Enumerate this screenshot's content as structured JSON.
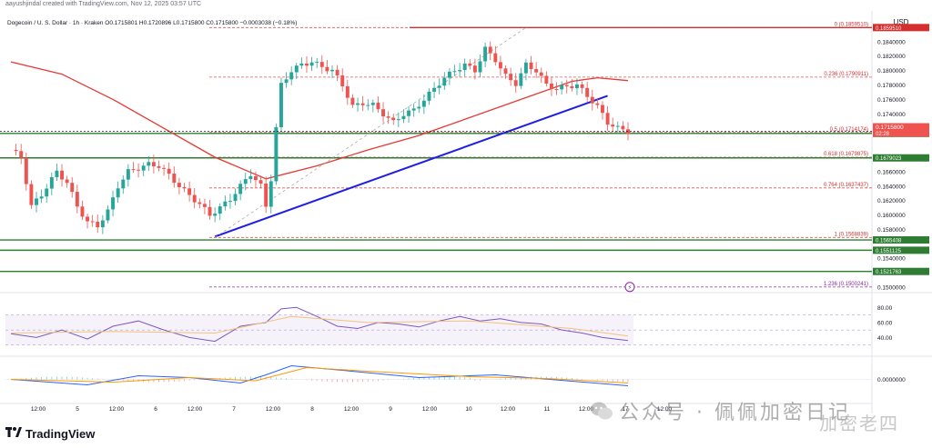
{
  "header": {
    "text": "aayushjindal created with TradingView.com, Nov 12, 2025 03:57 UTC",
    "symbol_line": "Dogecoin / U. S. Dollar · 1h · Kraken  O0.1715801  H0.1720896  L0.1715800  C0.1715800  −0.0003038 (−0.18%)"
  },
  "brand": {
    "name": "TradingView"
  },
  "watermark": {
    "text": "公众号 · 佩佩加密日记",
    "text2": "加密老四"
  },
  "colors": {
    "up": "#26a69a",
    "down": "#ef5350",
    "trendline": "#1e1ee6",
    "ma": "#e53935",
    "support": "#2e7d32",
    "resistance": "#d32f2f",
    "fib": "#d32f2f",
    "fib_ext": "#8e24aa",
    "rsi": "#7e57c2",
    "rsi_ma": "#f4c27a",
    "macd": "#2962ff",
    "signal": "#ff9800"
  },
  "chart_data": {
    "type": "candlestick",
    "title": "Dogecoin / U. S. Dollar · 1h · Kraken",
    "currency_label": "USD",
    "ylim": [
      0.15,
      0.187
    ],
    "y_ticks": [
      "0.1840000",
      "0.1820000",
      "0.1800000",
      "0.1780000",
      "0.1760000",
      "0.1740000",
      "0.1660000",
      "0.1640000",
      "0.1620000",
      "0.1600000",
      "0.1580000",
      "0.1540000",
      "0.1500000"
    ],
    "x_ticks": [
      "12:00",
      "5",
      "12:00",
      "6",
      "12:00",
      "7",
      "12:00",
      "8",
      "12:00",
      "9",
      "12:00",
      "10",
      "12:00",
      "11",
      "12:00",
      "17",
      "12:00"
    ],
    "price_path": [
      [
        0,
        0.169
      ],
      [
        2,
        0.168
      ],
      [
        4,
        0.1612
      ],
      [
        6,
        0.1628
      ],
      [
        9,
        0.166
      ],
      [
        11,
        0.1645
      ],
      [
        13,
        0.1612
      ],
      [
        15,
        0.159
      ],
      [
        17,
        0.1585
      ],
      [
        19,
        0.1605
      ],
      [
        21,
        0.164
      ],
      [
        23,
        0.166
      ],
      [
        25,
        0.1665
      ],
      [
        27,
        0.167
      ],
      [
        29,
        0.1668
      ],
      [
        31,
        0.1655
      ],
      [
        33,
        0.164
      ],
      [
        35,
        0.1627
      ],
      [
        37,
        0.1615
      ],
      [
        39,
        0.16
      ],
      [
        41,
        0.161
      ],
      [
        43,
        0.1622
      ],
      [
        45,
        0.164
      ],
      [
        47,
        0.1657
      ],
      [
        49,
        0.164
      ],
      [
        50,
        0.1612
      ],
      [
        51,
        0.165
      ],
      [
        52,
        0.172
      ],
      [
        53,
        0.178
      ],
      [
        55,
        0.18
      ],
      [
        57,
        0.1808
      ],
      [
        59,
        0.1812
      ],
      [
        61,
        0.1805
      ],
      [
        63,
        0.18
      ],
      [
        65,
        0.178
      ],
      [
        67,
        0.175
      ],
      [
        69,
        0.1755
      ],
      [
        71,
        0.1752
      ],
      [
        73,
        0.174
      ],
      [
        75,
        0.1728
      ],
      [
        77,
        0.174
      ],
      [
        79,
        0.1745
      ],
      [
        81,
        0.176
      ],
      [
        83,
        0.1775
      ],
      [
        85,
        0.179
      ],
      [
        87,
        0.18
      ],
      [
        89,
        0.1808
      ],
      [
        91,
        0.18
      ],
      [
        93,
        0.183
      ],
      [
        95,
        0.1815
      ],
      [
        97,
        0.1792
      ],
      [
        99,
        0.1782
      ],
      [
        101,
        0.1808
      ],
      [
        103,
        0.18
      ],
      [
        105,
        0.178
      ],
      [
        107,
        0.1775
      ],
      [
        109,
        0.1778
      ],
      [
        111,
        0.178
      ],
      [
        113,
        0.1765
      ],
      [
        115,
        0.175
      ],
      [
        117,
        0.1728
      ],
      [
        119,
        0.172
      ],
      [
        121,
        0.17158
      ]
    ],
    "ma_path": [
      [
        0,
        0.1812
      ],
      [
        10,
        0.1795
      ],
      [
        20,
        0.176
      ],
      [
        30,
        0.172
      ],
      [
        40,
        0.168
      ],
      [
        50,
        0.165
      ],
      [
        60,
        0.1668
      ],
      [
        70,
        0.169
      ],
      [
        80,
        0.171
      ],
      [
        90,
        0.1735
      ],
      [
        100,
        0.176
      ],
      [
        110,
        0.1785
      ],
      [
        115,
        0.179
      ],
      [
        121,
        0.1786
      ]
    ],
    "trendline": [
      [
        40,
        0.157
      ],
      [
        117,
        0.1765
      ]
    ],
    "fib_levels": [
      {
        "label": "0 (0.1859510)",
        "value": 0.185951
      },
      {
        "label": "0.236 (0.1790911)",
        "value": 0.1790911
      },
      {
        "label": "0.5 (0.1714174)",
        "value": 0.1714174
      },
      {
        "label": "0.618 (0.1679875)",
        "value": 0.1679875
      },
      {
        "label": "0.764 (0.1637437)",
        "value": 0.1637437
      },
      {
        "label": "1 (0.1568839)",
        "value": 0.1568839
      },
      {
        "label": "1.236 (0.1500241)",
        "value": 0.1500241
      }
    ],
    "horizontal_levels": [
      {
        "label": "0.1859510",
        "value": 0.185951,
        "kind": "resistance"
      },
      {
        "label": "0.1712907",
        "value": 0.1712907,
        "kind": "support"
      },
      {
        "label": "0.1679023",
        "value": 0.1679023,
        "kind": "support"
      },
      {
        "label": "0.1565408",
        "value": 0.1565408,
        "kind": "support"
      },
      {
        "label": "0.1551125",
        "value": 0.1551125,
        "kind": "support"
      },
      {
        "label": "0.1521763",
        "value": 0.1521763,
        "kind": "support"
      }
    ],
    "current_price": {
      "label": "0.1715800",
      "timer": "02:28",
      "value": 0.17158
    },
    "rsi": {
      "ticks": [
        "80.00",
        "60.00",
        "40.00"
      ],
      "path": [
        [
          0,
          45
        ],
        [
          5,
          40
        ],
        [
          10,
          50
        ],
        [
          15,
          38
        ],
        [
          20,
          55
        ],
        [
          25,
          62
        ],
        [
          30,
          50
        ],
        [
          35,
          40
        ],
        [
          40,
          35
        ],
        [
          45,
          55
        ],
        [
          50,
          60
        ],
        [
          53,
          78
        ],
        [
          56,
          80
        ],
        [
          60,
          68
        ],
        [
          64,
          55
        ],
        [
          68,
          52
        ],
        [
          72,
          60
        ],
        [
          76,
          58
        ],
        [
          80,
          54
        ],
        [
          84,
          62
        ],
        [
          88,
          68
        ],
        [
          92,
          62
        ],
        [
          96,
          65
        ],
        [
          100,
          60
        ],
        [
          104,
          58
        ],
        [
          108,
          50
        ],
        [
          112,
          46
        ],
        [
          116,
          40
        ],
        [
          121,
          36
        ]
      ],
      "ma_path": [
        [
          0,
          46
        ],
        [
          20,
          48
        ],
        [
          40,
          46
        ],
        [
          55,
          68
        ],
        [
          70,
          60
        ],
        [
          90,
          62
        ],
        [
          110,
          52
        ],
        [
          121,
          42
        ]
      ]
    },
    "macd": {
      "tick": "0.0000000",
      "macd_path": [
        [
          0,
          0.0
        ],
        [
          15,
          -0.0012
        ],
        [
          25,
          0.0008
        ],
        [
          35,
          0.0004
        ],
        [
          45,
          -0.0008
        ],
        [
          50,
          0.001
        ],
        [
          55,
          0.003
        ],
        [
          65,
          0.002
        ],
        [
          80,
          0.0004
        ],
        [
          95,
          0.001
        ],
        [
          110,
          -0.0004
        ],
        [
          121,
          -0.0014
        ]
      ],
      "signal_path": [
        [
          0,
          0.0
        ],
        [
          20,
          -0.0006
        ],
        [
          35,
          0.0004
        ],
        [
          48,
          -0.0003
        ],
        [
          58,
          0.0026
        ],
        [
          70,
          0.0018
        ],
        [
          90,
          0.0006
        ],
        [
          105,
          0.0002
        ],
        [
          121,
          -0.0008
        ]
      ]
    }
  }
}
